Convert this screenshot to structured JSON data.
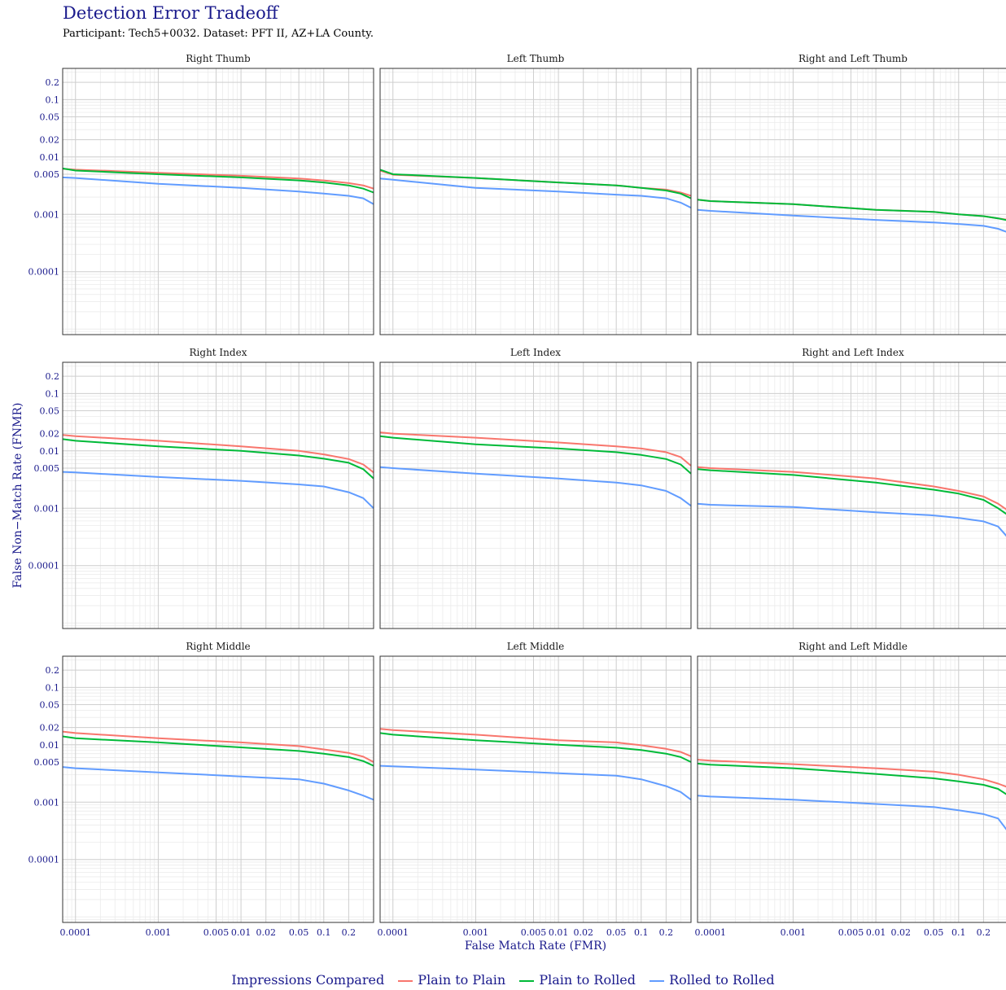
{
  "page": {
    "title": "Detection Error Tradeoff",
    "subtitle": "Participant: Tech5+0032. Dataset: PFT II, AZ+LA County."
  },
  "colors": {
    "title": "#1a1a8c",
    "plain_to_plain": "#f8766d",
    "plain_to_rolled": "#00ba38",
    "rolled_to_rolled": "#619cff"
  },
  "chart_data": {
    "type": "line",
    "title": "Detection Error Tradeoff",
    "subtitle": "Participant: Tech5+0032. Dataset: PFT II, AZ+LA County.",
    "xlabel": "False Match Rate (FMR)",
    "ylabel": "False Non−Match Rate (FNMR)",
    "x_scale": "log",
    "y_scale": "log",
    "xlim": [
      7e-05,
      0.4
    ],
    "ylim": [
      8e-06,
      0.35
    ],
    "grid": true,
    "x_ticks": [
      0.0001,
      0.001,
      0.005,
      0.01,
      0.02,
      0.05,
      0.1,
      0.2
    ],
    "x_tick_labels": [
      "0.0001",
      "0.001",
      "0.005",
      "0.01",
      "0.02",
      "0.05",
      "0.1",
      "0.2"
    ],
    "y_ticks": [
      0.0001,
      0.001,
      0.005,
      0.01,
      0.02,
      0.05,
      0.1,
      0.2
    ],
    "y_tick_labels": [
      "0.0001",
      "0.001",
      "0.005",
      "0.01",
      "0.02",
      "0.05",
      "0.1",
      "0.2"
    ],
    "legend": {
      "title": "Impressions Compared",
      "position": "bottom",
      "entries": [
        "Plain to Plain",
        "Plain to Rolled",
        "Rolled to Rolled"
      ]
    },
    "x": [
      7e-05,
      0.0001,
      0.001,
      0.01,
      0.05,
      0.1,
      0.2,
      0.3,
      0.4
    ],
    "panels": [
      {
        "title": "Right Thumb",
        "series": [
          {
            "name": "Plain to Plain",
            "values": [
              0.0062,
              0.006,
              0.0053,
              0.0047,
              0.0042,
              0.0039,
              0.0035,
              0.0032,
              0.0028
            ]
          },
          {
            "name": "Plain to Rolled",
            "values": [
              0.0063,
              0.0058,
              0.005,
              0.0044,
              0.0039,
              0.0036,
              0.0032,
              0.0028,
              0.0024
            ]
          },
          {
            "name": "Rolled to Rolled",
            "values": [
              0.0044,
              0.0043,
              0.0034,
              0.0029,
              0.0025,
              0.0023,
              0.0021,
              0.0019,
              0.0015
            ]
          }
        ]
      },
      {
        "title": "Left Thumb",
        "series": [
          {
            "name": "Plain to Plain",
            "values": [
              0.0058,
              0.0049,
              0.0043,
              0.0036,
              0.0032,
              0.0029,
              0.0027,
              0.0024,
              0.0021
            ]
          },
          {
            "name": "Plain to Rolled",
            "values": [
              0.006,
              0.005,
              0.0043,
              0.0036,
              0.0032,
              0.0029,
              0.0026,
              0.0023,
              0.0019
            ]
          },
          {
            "name": "Rolled to Rolled",
            "values": [
              0.0042,
              0.004,
              0.0029,
              0.0025,
              0.0022,
              0.0021,
              0.0019,
              0.0016,
              0.0013
            ]
          }
        ]
      },
      {
        "title": "Right and Left Thumb",
        "series": [
          {
            "name": "Plain to Plain",
            "values": [
              0.0018,
              0.0017,
              0.0015,
              0.0012,
              0.0011,
              0.001,
              0.00093,
              0.00085,
              0.0008
            ]
          },
          {
            "name": "Plain to Rolled",
            "values": [
              0.0018,
              0.0017,
              0.0015,
              0.0012,
              0.0011,
              0.001,
              0.00093,
              0.00085,
              0.00078
            ]
          },
          {
            "name": "Rolled to Rolled",
            "values": [
              0.0012,
              0.00115,
              0.00095,
              0.0008,
              0.00072,
              0.00068,
              0.00063,
              0.00056,
              0.00048
            ]
          }
        ]
      },
      {
        "title": "Right Index",
        "series": [
          {
            "name": "Plain to Plain",
            "values": [
              0.019,
              0.018,
              0.015,
              0.012,
              0.01,
              0.0087,
              0.0072,
              0.0058,
              0.0042
            ]
          },
          {
            "name": "Plain to Rolled",
            "values": [
              0.016,
              0.015,
              0.012,
              0.01,
              0.0083,
              0.0073,
              0.0062,
              0.0048,
              0.0033
            ]
          },
          {
            "name": "Rolled to Rolled",
            "values": [
              0.0043,
              0.0042,
              0.0035,
              0.003,
              0.0026,
              0.0024,
              0.0019,
              0.0015,
              0.001
            ]
          }
        ]
      },
      {
        "title": "Left Index",
        "series": [
          {
            "name": "Plain to Plain",
            "values": [
              0.021,
              0.02,
              0.017,
              0.014,
              0.012,
              0.011,
              0.0095,
              0.0078,
              0.0055
            ]
          },
          {
            "name": "Plain to Rolled",
            "values": [
              0.018,
              0.017,
              0.013,
              0.011,
              0.0095,
              0.0085,
              0.0072,
              0.0058,
              0.004
            ]
          },
          {
            "name": "Rolled to Rolled",
            "values": [
              0.0052,
              0.005,
              0.004,
              0.0033,
              0.0028,
              0.0025,
              0.002,
              0.0015,
              0.0011
            ]
          }
        ]
      },
      {
        "title": "Right and Left Index",
        "series": [
          {
            "name": "Plain to Plain",
            "values": [
              0.0052,
              0.005,
              0.0043,
              0.0033,
              0.0024,
              0.002,
              0.0016,
              0.0012,
              0.0009
            ]
          },
          {
            "name": "Plain to Rolled",
            "values": [
              0.0048,
              0.0046,
              0.0038,
              0.0028,
              0.0021,
              0.0018,
              0.0014,
              0.001,
              0.00075
            ]
          },
          {
            "name": "Rolled to Rolled",
            "values": [
              0.0012,
              0.00115,
              0.00105,
              0.00085,
              0.00075,
              0.00068,
              0.00059,
              0.00048,
              0.0003
            ]
          }
        ]
      },
      {
        "title": "Right Middle",
        "series": [
          {
            "name": "Plain to Plain",
            "values": [
              0.017,
              0.016,
              0.013,
              0.011,
              0.0095,
              0.0083,
              0.0072,
              0.0062,
              0.005
            ]
          },
          {
            "name": "Plain to Rolled",
            "values": [
              0.014,
              0.013,
              0.011,
              0.009,
              0.0078,
              0.007,
              0.0061,
              0.0052,
              0.0043
            ]
          },
          {
            "name": "Rolled to Rolled",
            "values": [
              0.0041,
              0.0039,
              0.0033,
              0.0028,
              0.0025,
              0.0021,
              0.0016,
              0.0013,
              0.0011
            ]
          }
        ]
      },
      {
        "title": "Left Middle",
        "series": [
          {
            "name": "Plain to Plain",
            "values": [
              0.019,
              0.018,
              0.015,
              0.012,
              0.011,
              0.0098,
              0.0085,
              0.0075,
              0.0063
            ]
          },
          {
            "name": "Plain to Rolled",
            "values": [
              0.016,
              0.015,
              0.012,
              0.01,
              0.0089,
              0.0081,
              0.007,
              0.0061,
              0.005
            ]
          },
          {
            "name": "Rolled to Rolled",
            "values": [
              0.0043,
              0.0042,
              0.0037,
              0.0032,
              0.0029,
              0.0025,
              0.0019,
              0.0015,
              0.0011
            ]
          }
        ]
      },
      {
        "title": "Right and Left Middle",
        "series": [
          {
            "name": "Plain to Plain",
            "values": [
              0.0055,
              0.0053,
              0.0046,
              0.0039,
              0.0034,
              0.003,
              0.0025,
              0.0021,
              0.0018
            ]
          },
          {
            "name": "Plain to Rolled",
            "values": [
              0.0047,
              0.0045,
              0.0039,
              0.0031,
              0.0026,
              0.0023,
              0.002,
              0.0017,
              0.0013
            ]
          },
          {
            "name": "Rolled to Rolled",
            "values": [
              0.0013,
              0.00125,
              0.0011,
              0.00093,
              0.00082,
              0.00072,
              0.00062,
              0.00052,
              0.0003
            ]
          }
        ]
      }
    ]
  }
}
